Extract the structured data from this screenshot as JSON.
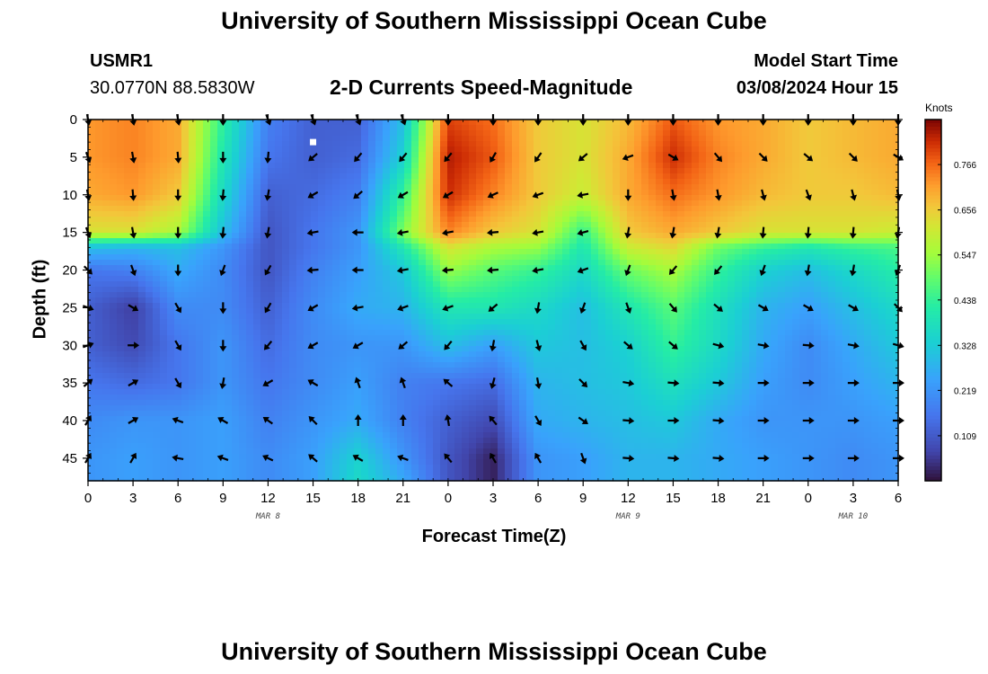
{
  "header": {
    "title": "University of Southern Mississippi Ocean Cube",
    "station": "USMR1",
    "coords": "30.0770N  88.5830W",
    "subtitle": "2-D Currents Speed-Magnitude",
    "model_start_label": "Model Start Time",
    "model_start_value": "03/08/2024 Hour 15"
  },
  "footer": {
    "title": "University of Southern Mississippi Ocean Cube"
  },
  "chart_data": {
    "type": "heatmap",
    "title": "2-D Currents Speed-Magnitude",
    "xlabel": "Forecast Time(Z)",
    "ylabel": "Depth (ft)",
    "x_tick_labels": [
      "0",
      "3",
      "6",
      "9",
      "12",
      "15",
      "18",
      "21",
      "0",
      "3",
      "6",
      "9",
      "12",
      "15",
      "18",
      "21",
      "0",
      "3",
      "6"
    ],
    "x_range_hours": [
      0,
      54
    ],
    "date_labels": [
      {
        "text": "MAR 8",
        "hour": 12
      },
      {
        "text": "MAR 9",
        "hour": 36
      },
      {
        "text": "MAR 10",
        "hour": 51
      }
    ],
    "y_ticks": [
      0,
      5,
      10,
      15,
      20,
      25,
      30,
      35,
      40,
      45
    ],
    "y_range": [
      0,
      48
    ],
    "y_inverted": true,
    "colorbar": {
      "label": "Knots",
      "ticks": [
        "0.766",
        "0.656",
        "0.547",
        "0.438",
        "0.328",
        "0.219",
        "0.109"
      ],
      "range": [
        0.0,
        0.875
      ]
    },
    "vector_times": [
      0,
      3,
      6,
      9,
      12,
      15,
      18,
      21,
      24,
      27,
      30,
      33,
      36,
      39,
      42,
      45,
      48,
      51,
      54
    ],
    "vector_depths": [
      0,
      5,
      10,
      15,
      20,
      25,
      30,
      35,
      40,
      45
    ],
    "current_marker": {
      "hour": 15,
      "depth": 3
    },
    "anchors": {
      "depths": [
        0,
        5,
        10,
        15,
        17,
        20,
        25,
        30,
        35,
        40,
        45,
        48
      ],
      "times": [
        0,
        3,
        6,
        9,
        12,
        15,
        18,
        21,
        24,
        27,
        30,
        33,
        36,
        39,
        42,
        45,
        48,
        51,
        54
      ],
      "speed_rows": [
        [
          0.72,
          0.74,
          0.7,
          0.43,
          0.18,
          0.12,
          0.12,
          0.3,
          0.8,
          0.76,
          0.66,
          0.62,
          0.68,
          0.78,
          0.72,
          0.7,
          0.66,
          0.68,
          0.7
        ],
        [
          0.72,
          0.74,
          0.7,
          0.4,
          0.16,
          0.12,
          0.14,
          0.34,
          0.84,
          0.78,
          0.66,
          0.62,
          0.7,
          0.82,
          0.74,
          0.7,
          0.66,
          0.68,
          0.7
        ],
        [
          0.7,
          0.72,
          0.66,
          0.36,
          0.12,
          0.14,
          0.18,
          0.44,
          0.82,
          0.74,
          0.66,
          0.6,
          0.7,
          0.76,
          0.72,
          0.68,
          0.66,
          0.66,
          0.68
        ],
        [
          0.62,
          0.62,
          0.56,
          0.3,
          0.1,
          0.16,
          0.22,
          0.52,
          0.74,
          0.66,
          0.62,
          0.44,
          0.66,
          0.7,
          0.66,
          0.62,
          0.62,
          0.62,
          0.6
        ],
        [
          0.3,
          0.28,
          0.3,
          0.22,
          0.1,
          0.16,
          0.22,
          0.4,
          0.62,
          0.56,
          0.54,
          0.4,
          0.6,
          0.64,
          0.5,
          0.44,
          0.4,
          0.44,
          0.46
        ],
        [
          0.16,
          0.18,
          0.26,
          0.2,
          0.1,
          0.18,
          0.24,
          0.32,
          0.54,
          0.48,
          0.44,
          0.36,
          0.5,
          0.56,
          0.44,
          0.34,
          0.3,
          0.36,
          0.42
        ],
        [
          0.12,
          0.06,
          0.2,
          0.2,
          0.12,
          0.2,
          0.26,
          0.28,
          0.4,
          0.4,
          0.36,
          0.3,
          0.4,
          0.48,
          0.38,
          0.28,
          0.24,
          0.3,
          0.36
        ],
        [
          0.12,
          0.08,
          0.16,
          0.22,
          0.14,
          0.2,
          0.22,
          0.22,
          0.3,
          0.24,
          0.32,
          0.3,
          0.34,
          0.44,
          0.36,
          0.26,
          0.2,
          0.26,
          0.32
        ],
        [
          0.16,
          0.14,
          0.16,
          0.22,
          0.16,
          0.2,
          0.24,
          0.18,
          0.16,
          0.14,
          0.28,
          0.3,
          0.32,
          0.38,
          0.32,
          0.24,
          0.2,
          0.24,
          0.28
        ],
        [
          0.2,
          0.22,
          0.22,
          0.24,
          0.18,
          0.22,
          0.26,
          0.18,
          0.12,
          0.08,
          0.26,
          0.28,
          0.3,
          0.32,
          0.26,
          0.22,
          0.22,
          0.22,
          0.24
        ],
        [
          0.22,
          0.24,
          0.22,
          0.24,
          0.2,
          0.24,
          0.34,
          0.22,
          0.1,
          0.02,
          0.22,
          0.24,
          0.28,
          0.28,
          0.26,
          0.24,
          0.22,
          0.2,
          0.22
        ],
        [
          0.22,
          0.24,
          0.22,
          0.24,
          0.2,
          0.24,
          0.36,
          0.26,
          0.1,
          0.02,
          0.22,
          0.24,
          0.28,
          0.28,
          0.26,
          0.24,
          0.22,
          0.2,
          0.22
        ]
      ],
      "direction_rows_deg": [
        [
          80,
          80,
          80,
          90,
          70,
          70,
          70,
          70,
          90,
          90,
          90,
          90,
          90,
          90,
          90,
          90,
          90,
          90,
          90
        ],
        [
          70,
          80,
          85,
          90,
          95,
          140,
          130,
          130,
          130,
          120,
          125,
          140,
          160,
          30,
          50,
          45,
          40,
          45,
          30
        ],
        [
          80,
          85,
          90,
          95,
          100,
          150,
          140,
          150,
          150,
          155,
          160,
          170,
          90,
          80,
          80,
          75,
          70,
          75,
          80
        ],
        [
          70,
          80,
          90,
          95,
          100,
          170,
          180,
          170,
          170,
          175,
          170,
          165,
          100,
          100,
          100,
          95,
          95,
          95,
          100
        ],
        [
          45,
          70,
          90,
          110,
          120,
          175,
          180,
          170,
          175,
          175,
          170,
          160,
          110,
          130,
          130,
          110,
          100,
          100,
          110
        ],
        [
          20,
          30,
          60,
          90,
          120,
          150,
          170,
          160,
          160,
          140,
          100,
          110,
          70,
          50,
          40,
          30,
          30,
          30,
          45
        ],
        [
          -20,
          0,
          60,
          90,
          130,
          150,
          150,
          140,
          130,
          100,
          75,
          60,
          40,
          40,
          15,
          10,
          5,
          10,
          15
        ],
        [
          -40,
          -30,
          60,
          100,
          150,
          210,
          250,
          250,
          220,
          105,
          80,
          45,
          10,
          5,
          5,
          0,
          0,
          0,
          0
        ],
        [
          -60,
          -30,
          200,
          210,
          215,
          225,
          270,
          270,
          260,
          230,
          60,
          35,
          5,
          0,
          5,
          0,
          0,
          0,
          0
        ],
        [
          -60,
          -60,
          190,
          200,
          205,
          220,
          210,
          200,
          230,
          240,
          240,
          70,
          5,
          5,
          5,
          0,
          0,
          0,
          0
        ]
      ]
    }
  }
}
